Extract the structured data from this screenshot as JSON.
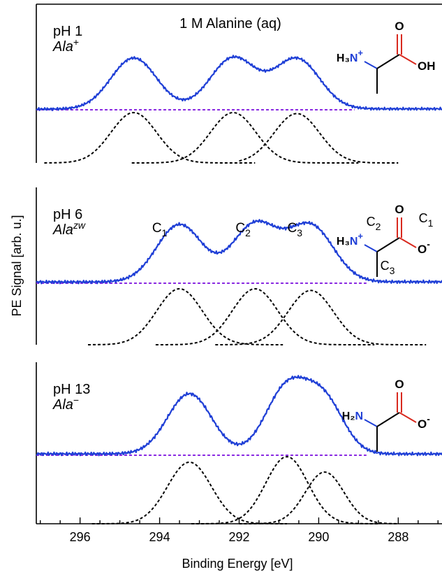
{
  "figure": {
    "title": "1 M Alanine (aq)",
    "ylabel": "PE Signal [arb. u.]",
    "xlabel": "Binding Energy [eV]"
  },
  "colors": {
    "spectrum": "#1f3fd6",
    "baseline": "#8a2be2",
    "fit": "#000000",
    "nitrogen": "#1f3fd6",
    "oxygen": "#d8291e"
  },
  "chart_data": [
    {
      "type": "line",
      "panel_label": "pH 1",
      "species": "Ala",
      "species_sup": "+",
      "molecule": {
        "n_group": "H₃N",
        "n_charge": "+",
        "o_top": "O",
        "o_side": "OH"
      },
      "xlim": [
        297.1,
        286.9
      ],
      "x_reversed": true,
      "peaks": [
        {
          "center": 294.65,
          "height": 1.0,
          "fwhm": 1.35
        },
        {
          "center": 292.15,
          "height": 1.0,
          "fwhm": 1.35
        },
        {
          "center": 290.55,
          "height": 0.98,
          "fwhm": 1.35
        }
      ],
      "fit_ranges": [
        [
          296.9,
          291.6
        ],
        [
          294.7,
          289.0
        ],
        [
          292.0,
          288.0
        ]
      ],
      "baseline_range": [
        297.1,
        289.1
      ],
      "peak_labels": []
    },
    {
      "type": "line",
      "panel_label": "pH 6",
      "species": "Ala",
      "species_sup": "zw",
      "molecule": {
        "n_group": "H₃N",
        "n_charge": "+",
        "o_top": "O",
        "o_side": "O",
        "o_side_charge": "-",
        "c_labels": [
          "C1",
          "C2",
          "C3"
        ]
      },
      "xlim": [
        297.1,
        286.9
      ],
      "x_reversed": true,
      "peaks": [
        {
          "center": 293.5,
          "height": 1.0,
          "fwhm": 1.35
        },
        {
          "center": 291.6,
          "height": 1.0,
          "fwhm": 1.35
        },
        {
          "center": 290.2,
          "height": 0.97,
          "fwhm": 1.35
        }
      ],
      "fit_ranges": [
        [
          295.8,
          290.9
        ],
        [
          294.1,
          288.6
        ],
        [
          292.6,
          287.3
        ]
      ],
      "baseline_range": [
        297.1,
        288.8
      ],
      "peak_labels": [
        {
          "base": "C",
          "sub": "1",
          "x": 294.0
        },
        {
          "base": "C",
          "sub": "2",
          "x": 291.9
        },
        {
          "base": "C",
          "sub": "3",
          "x": 290.6
        }
      ]
    },
    {
      "type": "line",
      "panel_label": "pH 13",
      "species": "Ala",
      "species_sup": "−",
      "molecule": {
        "n_group": "H₂N",
        "o_top": "O",
        "o_side": "O",
        "o_side_charge": "-"
      },
      "xlim": [
        297.1,
        286.9
      ],
      "x_reversed": true,
      "peaks": [
        {
          "center": 293.25,
          "height": 1.0,
          "fwhm": 1.3
        },
        {
          "center": 290.8,
          "height": 1.09,
          "fwhm": 1.25
        },
        {
          "center": 289.85,
          "height": 0.84,
          "fwhm": 1.15
        }
      ],
      "fit_ranges": [
        [
          295.7,
          290.8
        ],
        [
          293.2,
          288.5
        ],
        [
          292.0,
          288.0
        ]
      ],
      "baseline_range": [
        297.1,
        288.8
      ],
      "peak_labels": []
    }
  ],
  "x_axis": {
    "ticks": [
      296,
      294,
      292,
      290,
      288
    ],
    "minor_step": 0.5
  }
}
